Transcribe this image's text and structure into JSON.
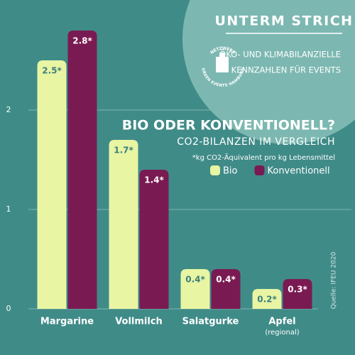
{
  "header": {
    "title": "UNTERM STRICH",
    "logo_top": "NETZWERK",
    "logo_bottom": "GREEN EVENTS HAMBURG",
    "lines": [
      "ÖKO- UND KLIMABILANZIELLE",
      "KENNZAHLEN FÜR EVENTS"
    ]
  },
  "chart_data": {
    "type": "bar",
    "title": "BIO ODER KONVENTIONELL?",
    "subtitle": "CO2-BILANZEN IM VERGLEICH",
    "note": "*kg CO2-Äquivalent pro kg Lebensmittel",
    "source": "Quelle: IFEU 2020",
    "categories": [
      "Margarine",
      "Vollmilch",
      "Salatgurke",
      "Apfel"
    ],
    "category_notes": [
      null,
      null,
      null,
      "(regional)"
    ],
    "series": [
      {
        "name": "Bio",
        "color": "#e8f5a3",
        "label_color": "#3d7f7c",
        "values": [
          2.5,
          1.7,
          0.4,
          0.2
        ],
        "value_labels": [
          "2.5*",
          "1.7*",
          "0.4*",
          "0.2*"
        ]
      },
      {
        "name": "Konventionell",
        "color": "#7a1a52",
        "label_color": "#ffffff",
        "values": [
          2.8,
          1.4,
          0.4,
          0.3
        ],
        "value_labels": [
          "2.8*",
          "1.4*",
          "0.4*",
          "0.3*"
        ]
      }
    ],
    "ylim": [
      0,
      3
    ],
    "yticks": [
      0,
      1,
      2
    ],
    "grid": true,
    "legend": "top-right"
  }
}
